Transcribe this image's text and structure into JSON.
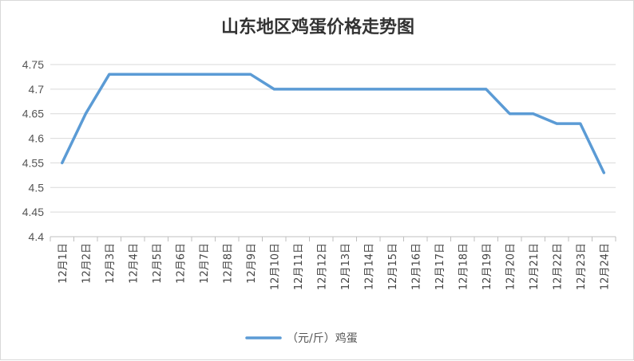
{
  "chart_data": {
    "type": "line",
    "title": "山东地区鸡蛋价格走势图",
    "xlabel": "",
    "ylabel": "",
    "categories": [
      "12月1日",
      "12月2日",
      "12月3日",
      "12月4日",
      "12月5日",
      "12月6日",
      "12月7日",
      "12月8日",
      "12月9日",
      "12月10日",
      "12月11日",
      "12月12日",
      "12月13日",
      "12月14日",
      "12月15日",
      "12月16日",
      "12月17日",
      "12月18日",
      "12月19日",
      "12月20日",
      "12月21日",
      "12月22日",
      "12月23日",
      "12月24日"
    ],
    "ylim": [
      4.4,
      4.75
    ],
    "yticks": [
      "4.75",
      "4.7",
      "4.65",
      "4.6",
      "4.55",
      "4.5",
      "4.45",
      "4.4"
    ],
    "grid": true,
    "legend_position": "bottom",
    "series": [
      {
        "name": "（元/斤）鸡蛋",
        "color": "#5b9bd5",
        "values": [
          4.55,
          4.65,
          4.73,
          4.73,
          4.73,
          4.73,
          4.73,
          4.73,
          4.73,
          4.7,
          4.7,
          4.7,
          4.7,
          4.7,
          4.7,
          4.7,
          4.7,
          4.7,
          4.7,
          4.65,
          4.65,
          4.63,
          4.63,
          4.53
        ]
      }
    ]
  }
}
